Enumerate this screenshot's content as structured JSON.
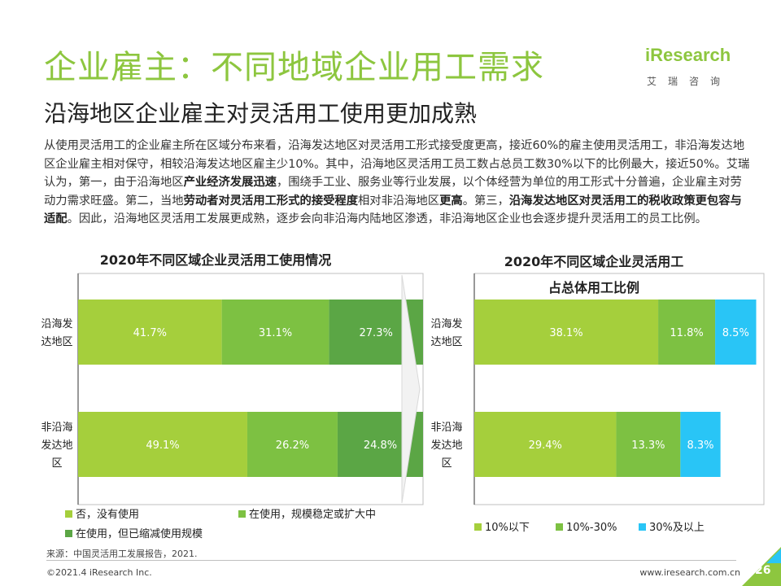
{
  "header": {
    "title": "企业雇主：不同地域企业用工需求",
    "subtitle": "沿海地区企业雇主对灵活用工使用更加成熟",
    "logo_text": "iResearch",
    "logo_cn": "艾瑞咨询"
  },
  "paragraph": {
    "p1": "从使用灵活用工的企业雇主所在区域分布来看，沿海发达地区对灵活用工形式接受度更高，接近60%的雇主使用灵活用工，非沿海发达地区企业雇主相对保守，相较沿海发达地区雇主少10%。其中，沿海地区灵活用工员工数占总员工数30%以下的比例最大，接近50%。艾瑞认为，第一，由于沿海地区",
    "b1": "产业经济发展迅速",
    "p2": "，围绕手工业、服务业等行业发展，以个体经营为单位的用工形式十分普遍，企业雇主对劳动力需求旺盛。第二，当地",
    "b2": "劳动者对灵活用工形式的接受程度",
    "p3": "相对非沿海地区",
    "b3": "更高",
    "p4": "。第三，",
    "b4": "沿海发达地区对灵活用工的税收政策更包容与适配",
    "p5": "。因此，沿海地区灵活用工发展更成熟，逐步会向非沿海内陆地区渗透，非沿海地区企业也会逐步提升灵活用工的员工比例。"
  },
  "footer": {
    "source": "来源：中国灵活用工发展报告，2021.",
    "copyright": "©2021.4 iResearch Inc.",
    "url": "www.iresearch.com.cn",
    "page": "26"
  },
  "chart_data": [
    {
      "type": "bar",
      "orientation": "horizontal-stacked",
      "title": "2020年不同区域企业灵活用工使用情况",
      "categories": [
        "沿海发达地区",
        "非沿海发达地区"
      ],
      "category_lines": [
        [
          "沿海发",
          "达地区"
        ],
        [
          "非沿海",
          "发达地",
          "区"
        ]
      ],
      "series": [
        {
          "name": "否，没有使用",
          "values": [
            41.7,
            49.1
          ],
          "labels": [
            "41.7%",
            "49.1%"
          ],
          "color": "#a5cf3c"
        },
        {
          "name": "在使用，规模稳定或扩大中",
          "values": [
            31.1,
            26.2
          ],
          "labels": [
            "31.1%",
            "26.2%"
          ],
          "color": "#7dc142"
        },
        {
          "name": "在使用，但已缩减使用规模",
          "values": [
            27.3,
            24.8
          ],
          "labels": [
            "27.3%",
            "24.8%"
          ],
          "color": "#5ba645"
        }
      ],
      "xlim": [
        0,
        100.1
      ],
      "legend_position": "bottom"
    },
    {
      "type": "bar",
      "orientation": "horizontal-stacked",
      "title_lines": [
        "2020年不同区域企业灵活用工",
        "占总体用工比例"
      ],
      "categories": [
        "沿海发达地区",
        "非沿海发达地区"
      ],
      "category_lines": [
        [
          "沿海发",
          "达地区"
        ],
        [
          "非沿海",
          "发达地",
          "区"
        ]
      ],
      "series": [
        {
          "name": "10%以下",
          "values": [
            38.1,
            29.4
          ],
          "labels": [
            "38.1%",
            "29.4%"
          ],
          "color": "#a5cf3c"
        },
        {
          "name": "10%-30%",
          "values": [
            11.8,
            13.3
          ],
          "labels": [
            "11.8%",
            "13.3%"
          ],
          "color": "#7dc142"
        },
        {
          "name": "30%及以上",
          "values": [
            8.5,
            8.3
          ],
          "labels": [
            "8.5%",
            "8.3%"
          ],
          "color": "#29c5f6"
        }
      ],
      "xlim": [
        0,
        60
      ],
      "legend_position": "bottom"
    }
  ]
}
